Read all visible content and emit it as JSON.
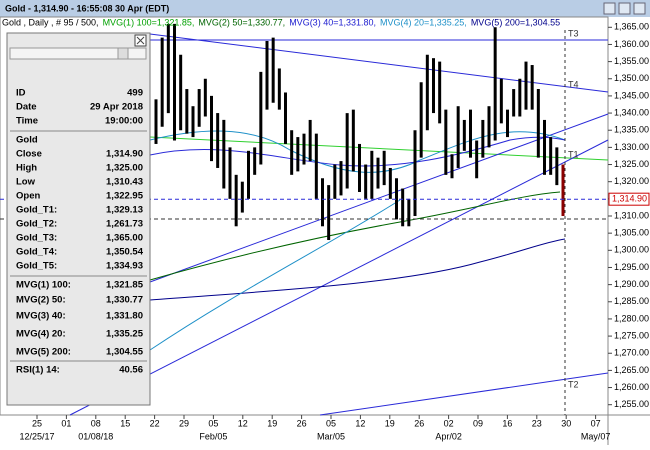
{
  "window": {
    "title": "Gold - 1,314.90 - 16:55:08  30 Apr (EDT)"
  },
  "chart_data": {
    "type": "hlbar",
    "legend": [
      {
        "text": "Gold , Daily , # 95 / 500,",
        "color": "#000000"
      },
      {
        "text": "MVG(1) 100=1,321.85,",
        "color": "#00a000"
      },
      {
        "text": "MVG(2) 50=1,330.77,",
        "color": "#006400"
      },
      {
        "text": "MVG(3) 40=1,331.80,",
        "color": "#2020d0"
      },
      {
        "text": "MVG(4) 20=1,335.25,",
        "color": "#1e90c8"
      },
      {
        "text": "MVG(5) 200=1,304.55",
        "color": "#00008b"
      }
    ],
    "color": "#000000",
    "last_color": "#8b0000",
    "highs": [
      1344,
      1362,
      1366,
      1366,
      1357,
      1347,
      1342,
      1347,
      1350,
      1345,
      1340,
      1338,
      1330,
      1322,
      1320,
      1329,
      1330,
      1352,
      1361,
      1362,
      1353,
      1346,
      1335,
      1333,
      1334,
      1338,
      1334,
      1321,
      1319,
      1325,
      1326,
      1340,
      1341,
      1331,
      1325,
      1329,
      1327,
      1329,
      1324,
      1321,
      1318,
      1315,
      1335,
      1349,
      1357,
      1356,
      1355,
      1341,
      1328,
      1342,
      1338,
      1341,
      1332,
      1338,
      1342,
      1365,
      1350,
      1341,
      1347,
      1350,
      1355,
      1354,
      1347,
      1338,
      1333,
      1330,
      1325
    ],
    "lows": [
      1331,
      1336,
      1340,
      1332,
      1335,
      1334,
      1333,
      1336,
      1339,
      1326,
      1324,
      1318,
      1315,
      1307,
      1311,
      1315,
      1322,
      1325,
      1341,
      1343,
      1341,
      1331,
      1322,
      1323,
      1325,
      1326,
      1315,
      1307,
      1303,
      1315,
      1316,
      1318,
      1323,
      1317,
      1315,
      1315,
      1318,
      1319,
      1315,
      1309,
      1307,
      1307,
      1310,
      1327,
      1335,
      1340,
      1337,
      1322,
      1321,
      1324,
      1329,
      1327,
      1321,
      1327,
      1330,
      1332,
      1337,
      1333,
      1339,
      1339,
      1341,
      1341,
      1327,
      1322,
      1322,
      1319,
      1310
    ],
    "ylim": [
      1252,
      1368
    ],
    "yticks": [
      {
        "value": 1255,
        "label": "1,255.00"
      },
      {
        "value": 1260,
        "label": "1,260.00"
      },
      {
        "value": 1265,
        "label": "1,265.00"
      },
      {
        "value": 1270,
        "label": "1,270.00"
      },
      {
        "value": 1275,
        "label": "1,275.00"
      },
      {
        "value": 1280,
        "label": "1,280.00"
      },
      {
        "value": 1285,
        "label": "1,285.00"
      },
      {
        "value": 1290,
        "label": "1,290.00"
      },
      {
        "value": 1295,
        "label": "1,295.00"
      },
      {
        "value": 1300,
        "label": "1,300.00"
      },
      {
        "value": 1305,
        "label": "1,305.00"
      },
      {
        "value": 1310,
        "label": "1,310.00"
      },
      {
        "value": 1315,
        "label": "1,315.00"
      },
      {
        "value": 1320,
        "label": "1,320.00"
      },
      {
        "value": 1325,
        "label": "1,325.00"
      },
      {
        "value": 1330,
        "label": "1,330.00"
      },
      {
        "value": 1335,
        "label": "1,335.00"
      },
      {
        "value": 1340,
        "label": "1,340.00"
      },
      {
        "value": 1345,
        "label": "1,345.00"
      },
      {
        "value": 1350,
        "label": "1,350.00"
      },
      {
        "value": 1355,
        "label": "1,355.00"
      },
      {
        "value": 1360,
        "label": "1,360.00"
      },
      {
        "value": 1365,
        "label": "1,365.00"
      }
    ],
    "last_price": {
      "value": 1314.9,
      "label": "1,314.90"
    },
    "x_minor_labels": [
      "25",
      "01",
      "08",
      "15",
      "22",
      "29",
      "05",
      "12",
      "19",
      "26",
      "05",
      "12",
      "19",
      "26",
      "02",
      "09",
      "16",
      "23",
      "30",
      "07"
    ],
    "x_major_labels": [
      "12/25/17",
      null,
      "01/08/18",
      null,
      null,
      null,
      "Feb/05",
      null,
      null,
      null,
      "Mar/05",
      null,
      null,
      null,
      "Apr/02",
      null,
      null,
      null,
      null,
      "May/07"
    ],
    "trendline_labels": [
      "T3",
      "T4",
      "T1",
      "T2"
    ]
  },
  "data_window": {
    "rows": [
      [
        "ID",
        "499"
      ],
      [
        "Date",
        "29 Apr 2018"
      ],
      [
        "Time",
        "19:00:00"
      ],
      [
        "Gold"
      ],
      [
        "Close",
        "1,314.90"
      ],
      [
        "High",
        "1,325.00"
      ],
      [
        "Low",
        "1,310.43"
      ],
      [
        "Open",
        "1,322.95"
      ],
      [
        "Gold_T1:",
        "1,329.13"
      ],
      [
        "Gold_T2:",
        "1,261.73"
      ],
      [
        "Gold_T3:",
        "1,365.00"
      ],
      [
        "Gold_T4:",
        "1,350.54"
      ],
      [
        "Gold_T5:",
        "1,334.93"
      ],
      [
        "MVG(1) 100:",
        "1,321.85"
      ],
      [
        "MVG(2) 50:",
        "1,330.77"
      ],
      [
        "MVG(3) 40:",
        "1,331.80"
      ],
      [
        "MVG(4) 20:",
        "1,335.25"
      ],
      [
        "MVG(5) 200:",
        "1,304.55"
      ],
      [
        "RSI(1) 14:",
        "40.56"
      ]
    ]
  }
}
